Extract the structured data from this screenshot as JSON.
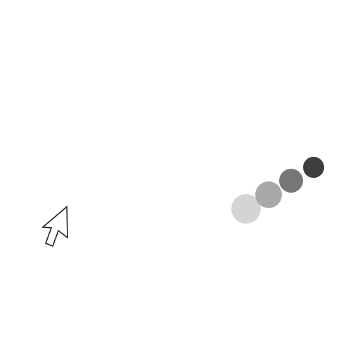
{
  "scene": {
    "background_color": "#ffffff",
    "cursor": {
      "icon": "arrow-cursor-icon",
      "stroke_color": "#1f1f1f",
      "fill_color": "#ffffff"
    },
    "trail_dots": [
      {
        "color": "#d4d4d4"
      },
      {
        "color": "#a8a8a8"
      },
      {
        "color": "#767676"
      },
      {
        "color": "#3d3d3d"
      }
    ]
  }
}
